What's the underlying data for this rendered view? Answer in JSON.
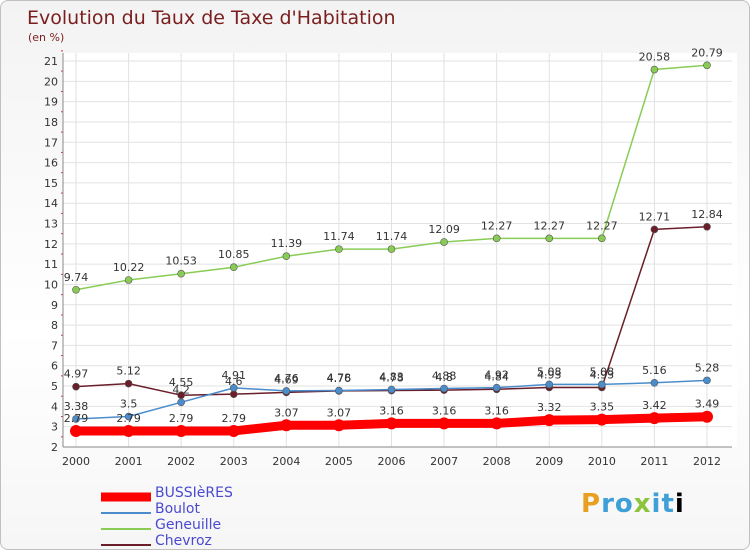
{
  "title": "Evolution du Taux de Taxe d'Habitation",
  "subtitle": "(en %)",
  "logo_text": "Proxiti",
  "chart_data": {
    "type": "line",
    "x": [
      2000,
      2001,
      2002,
      2003,
      2004,
      2005,
      2006,
      2007,
      2008,
      2009,
      2010,
      2011,
      2012
    ],
    "ylim": [
      2,
      21
    ],
    "yticks": [
      2,
      3,
      4,
      5,
      6,
      7,
      8,
      9,
      10,
      11,
      12,
      13,
      14,
      15,
      16,
      17,
      18,
      19,
      20,
      21
    ],
    "grid": true,
    "legend_position": "bottom-left",
    "series": [
      {
        "name": "BUSSIèRES",
        "color": "#ff0000",
        "values": [
          2.79,
          2.79,
          2.79,
          2.79,
          3.07,
          3.07,
          3.16,
          3.16,
          3.16,
          3.32,
          3.35,
          3.42,
          3.49
        ],
        "labels": [
          "2.79",
          "2.79",
          "2.79",
          "2.79",
          "3.07",
          "3.07",
          "3.16",
          "3.16",
          "3.16",
          "3.32",
          "3.35",
          "3.42",
          "3.49"
        ]
      },
      {
        "name": "Boulot",
        "color": "#4a8ccc",
        "values": [
          3.38,
          3.5,
          4.2,
          4.91,
          4.76,
          4.78,
          4.83,
          4.88,
          4.92,
          5.08,
          5.08,
          5.16,
          5.28
        ],
        "labels": [
          "3.38",
          "3.5",
          "4.2",
          "4.91",
          "4.76",
          "4.78",
          "4.83",
          "4.88",
          "4.92",
          "5.08",
          "5.08",
          "5.16",
          "5.28"
        ]
      },
      {
        "name": "Geneuille",
        "color": "#88cc55",
        "values": [
          9.74,
          10.22,
          10.53,
          10.85,
          11.39,
          11.74,
          11.74,
          12.09,
          12.27,
          12.27,
          12.27,
          20.58,
          20.79
        ],
        "labels": [
          "9.74",
          "10.22",
          "10.53",
          "10.85",
          "11.39",
          "11.74",
          "11.74",
          "12.09",
          "12.27",
          "12.27",
          "12.27",
          "20.58",
          "20.79"
        ]
      },
      {
        "name": "Chevroz",
        "color": "#6a1e2a",
        "values": [
          4.97,
          5.12,
          4.55,
          4.6,
          4.69,
          4.76,
          4.78,
          4.8,
          4.84,
          4.93,
          4.93,
          12.71,
          12.84
        ],
        "labels": [
          "4.97",
          "5.12",
          "4.55",
          "4.6",
          "4.69",
          "4.76",
          "4.78",
          "4.8",
          "4.84",
          "4.93",
          "4.93",
          "12.71",
          "12.84"
        ]
      }
    ]
  }
}
